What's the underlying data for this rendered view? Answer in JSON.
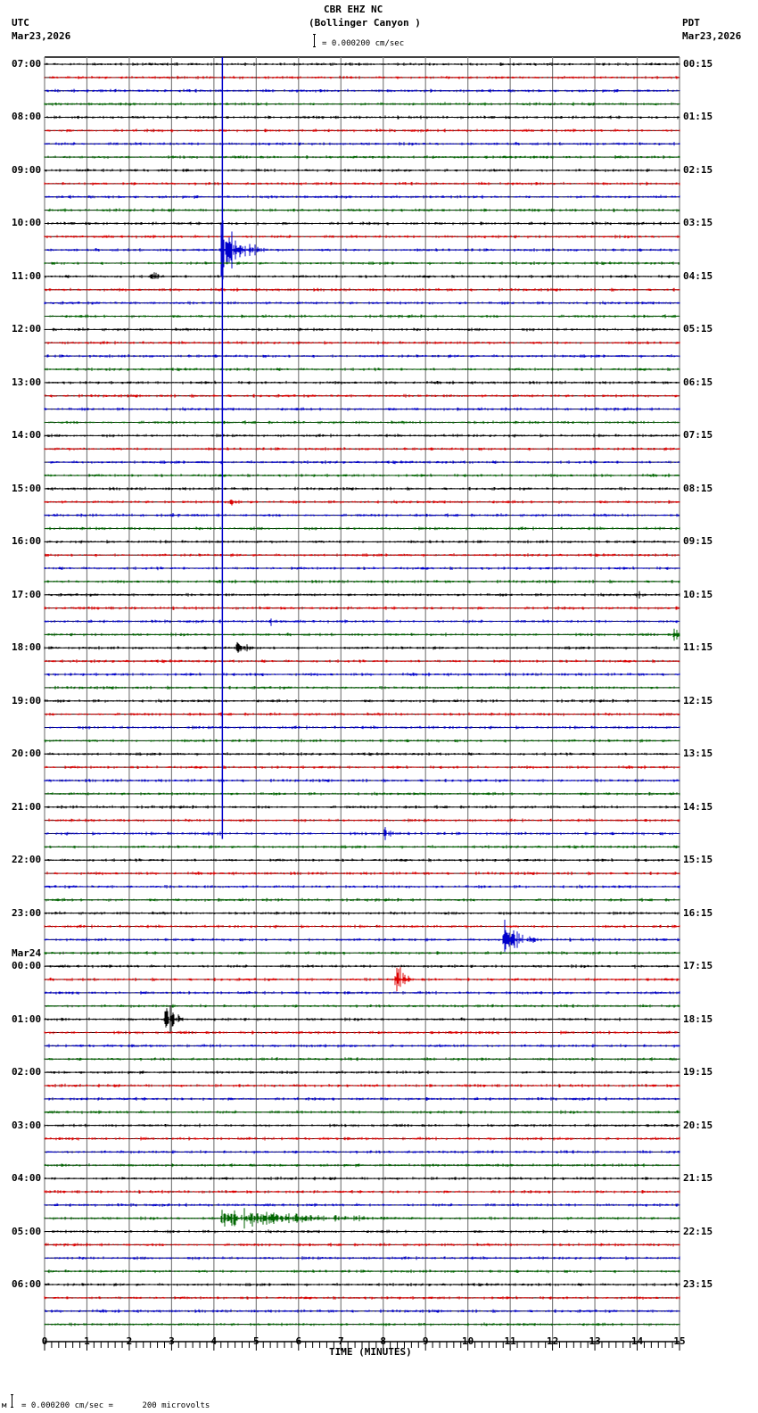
{
  "header": {
    "station": "CBR EHZ NC",
    "location": "(Bollinger Canyon )",
    "left_tz": "UTC",
    "left_date": "Mar23,2026",
    "right_tz": "PDT",
    "right_date": "Mar23,2026",
    "scale_text": "= 0.000200 cm/sec"
  },
  "footer": {
    "scale_text": "= 0.000200 cm/sec =      200 microvolts",
    "prefix_glyph": "м"
  },
  "colors": {
    "trace_cycle": [
      "#000000",
      "#dd0000",
      "#0000cc",
      "#006600"
    ],
    "grid": "#808080",
    "baseline": "#000000"
  },
  "chart_data": {
    "type": "line",
    "title": "CBR EHZ NC (Bollinger Canyon ) helicorder",
    "xlabel": "TIME (MINUTES)",
    "ylabel": "",
    "x_ticks": [
      "0",
      "1",
      "2",
      "3",
      "4",
      "5",
      "6",
      "7",
      "8",
      "9",
      "10",
      "11",
      "12",
      "13",
      "14",
      "15"
    ],
    "xlim": [
      0,
      15
    ],
    "minor_ticks_per_minute": 6,
    "grid": true,
    "traces_per_hour": 4,
    "trace_count": 96,
    "left_labels": [
      {
        "row": 0,
        "text": "07:00"
      },
      {
        "row": 4,
        "text": "08:00"
      },
      {
        "row": 8,
        "text": "09:00"
      },
      {
        "row": 12,
        "text": "10:00"
      },
      {
        "row": 16,
        "text": "11:00"
      },
      {
        "row": 20,
        "text": "12:00"
      },
      {
        "row": 24,
        "text": "13:00"
      },
      {
        "row": 28,
        "text": "14:00"
      },
      {
        "row": 32,
        "text": "15:00"
      },
      {
        "row": 36,
        "text": "16:00"
      },
      {
        "row": 40,
        "text": "17:00"
      },
      {
        "row": 44,
        "text": "18:00"
      },
      {
        "row": 48,
        "text": "19:00"
      },
      {
        "row": 52,
        "text": "20:00"
      },
      {
        "row": 56,
        "text": "21:00"
      },
      {
        "row": 60,
        "text": "22:00"
      },
      {
        "row": 64,
        "text": "23:00"
      },
      {
        "row": 68,
        "text": "00:00",
        "date": "Mar24"
      },
      {
        "row": 72,
        "text": "01:00"
      },
      {
        "row": 76,
        "text": "02:00"
      },
      {
        "row": 80,
        "text": "03:00"
      },
      {
        "row": 84,
        "text": "04:00"
      },
      {
        "row": 88,
        "text": "05:00"
      },
      {
        "row": 92,
        "text": "06:00"
      }
    ],
    "right_labels": [
      {
        "row": 0,
        "text": "00:15"
      },
      {
        "row": 4,
        "text": "01:15"
      },
      {
        "row": 8,
        "text": "02:15"
      },
      {
        "row": 12,
        "text": "03:15"
      },
      {
        "row": 16,
        "text": "04:15"
      },
      {
        "row": 20,
        "text": "05:15"
      },
      {
        "row": 24,
        "text": "06:15"
      },
      {
        "row": 28,
        "text": "07:15"
      },
      {
        "row": 32,
        "text": "08:15"
      },
      {
        "row": 36,
        "text": "09:15"
      },
      {
        "row": 40,
        "text": "10:15"
      },
      {
        "row": 44,
        "text": "11:15"
      },
      {
        "row": 48,
        "text": "12:15"
      },
      {
        "row": 52,
        "text": "13:15"
      },
      {
        "row": 56,
        "text": "14:15"
      },
      {
        "row": 60,
        "text": "15:15"
      },
      {
        "row": 64,
        "text": "16:15"
      },
      {
        "row": 68,
        "text": "17:15"
      },
      {
        "row": 72,
        "text": "18:15"
      },
      {
        "row": 76,
        "text": "19:15"
      },
      {
        "row": 80,
        "text": "20:15"
      },
      {
        "row": 84,
        "text": "21:15"
      },
      {
        "row": 88,
        "text": "22:15"
      },
      {
        "row": 92,
        "text": "23:15"
      }
    ],
    "events": [
      {
        "row": 14,
        "minute": 4.2,
        "amp": 55,
        "duration": 1.0,
        "color_row": 14,
        "note": "large blue event ~10:30 UTC"
      },
      {
        "row": 16,
        "minute": 2.5,
        "amp": 14,
        "duration": 0.4
      },
      {
        "row": 33,
        "minute": 4.4,
        "amp": 6,
        "duration": 0.4
      },
      {
        "row": 34,
        "minute": 3.0,
        "amp": 4,
        "duration": 0.8
      },
      {
        "row": 40,
        "minute": 14.0,
        "amp": 9,
        "duration": 0.3
      },
      {
        "row": 42,
        "minute": 5.35,
        "amp": 9,
        "duration": 0.3
      },
      {
        "row": 43,
        "minute": 14.85,
        "amp": 22,
        "duration": 0.3
      },
      {
        "row": 44,
        "minute": 4.55,
        "amp": 20,
        "duration": 0.4
      },
      {
        "row": 46,
        "minute": 5.0,
        "amp": 4,
        "duration": 0.8
      },
      {
        "row": 57,
        "minute": 14.2,
        "amp": 9,
        "duration": 0.3
      },
      {
        "row": 58,
        "minute": 8.05,
        "amp": 12,
        "duration": 0.4
      },
      {
        "row": 58,
        "minute": 3.9,
        "amp": 8,
        "duration": 0.2
      },
      {
        "row": 66,
        "minute": 10.85,
        "amp": 30,
        "duration": 1.0
      },
      {
        "row": 68,
        "minute": 13.9,
        "amp": 10,
        "duration": 0.15
      },
      {
        "row": 69,
        "minute": 8.3,
        "amp": 24,
        "duration": 0.5
      },
      {
        "row": 69,
        "minute": 1.8,
        "amp": 4,
        "duration": 0.3
      },
      {
        "row": 72,
        "minute": 2.85,
        "amp": 30,
        "duration": 0.5
      },
      {
        "row": 87,
        "minute": 4.2,
        "amp": 16,
        "duration": 6.0
      },
      {
        "row": 87,
        "minute": 5.2,
        "amp": 10,
        "duration": 2.0
      }
    ],
    "blue_line": {
      "minute": 4.2,
      "from_row": 0,
      "to_row": 58
    }
  }
}
